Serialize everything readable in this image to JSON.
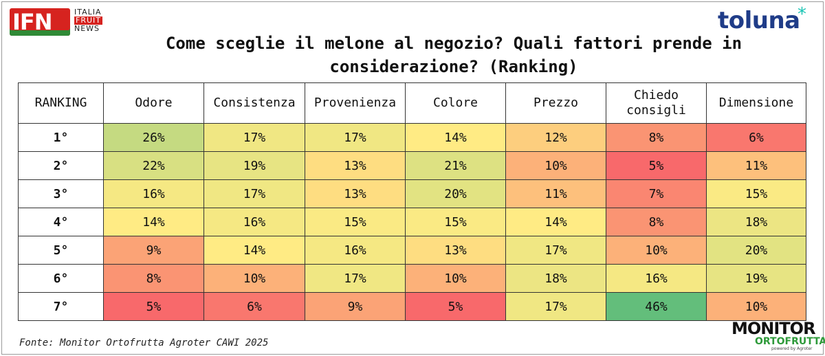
{
  "header": {
    "ifn_logo_letters": "IFN",
    "ifn_logo_line1": "ITALIA",
    "ifn_logo_line2": "FRUIT",
    "ifn_logo_line3": "NEWS",
    "toluna_logo": "toluna",
    "toluna_star": "*",
    "title_line1": "Come sceglie il melone al negozio? Quali fattori prende in",
    "title_line2": "considerazione? (Ranking)"
  },
  "chart_data": {
    "type": "table",
    "title": "Come sceglie il melone al negozio? Quali fattori prende in considerazione? (Ranking)",
    "row_header": "RANKING",
    "columns": [
      "Odore",
      "Consistenza",
      "Provenienza",
      "Colore",
      "Prezzo",
      "Chiedo consigli",
      "Dimensione"
    ],
    "column_labels_display": [
      "Odore",
      "Consistenza",
      "Provenienza",
      "Colore",
      "Prezzo",
      "Chiedo\nconsigli",
      "Dimensione"
    ],
    "rows": [
      {
        "rank": "1°",
        "values": [
          26,
          17,
          17,
          14,
          12,
          8,
          6
        ]
      },
      {
        "rank": "2°",
        "values": [
          22,
          19,
          13,
          21,
          10,
          5,
          11
        ]
      },
      {
        "rank": "3°",
        "values": [
          16,
          17,
          13,
          20,
          11,
          7,
          15
        ]
      },
      {
        "rank": "4°",
        "values": [
          14,
          16,
          15,
          15,
          14,
          8,
          18
        ]
      },
      {
        "rank": "5°",
        "values": [
          9,
          14,
          16,
          13,
          17,
          10,
          20
        ]
      },
      {
        "rank": "6°",
        "values": [
          8,
          10,
          17,
          10,
          18,
          16,
          19
        ]
      },
      {
        "rank": "7°",
        "values": [
          5,
          6,
          9,
          5,
          17,
          46,
          10
        ]
      }
    ],
    "value_suffix": "%",
    "colors": {
      "low": "#f8696b",
      "mid": "#ffeb84",
      "high": "#63be7b"
    }
  },
  "footer": {
    "source": "Fonte: Monitor Ortofrutta Agroter CAWI 2025",
    "monitor_logo_line1": "MONITOR",
    "monitor_logo_line2": "ORTOFRUTTA",
    "monitor_logo_line3": "powered by Agroter"
  }
}
